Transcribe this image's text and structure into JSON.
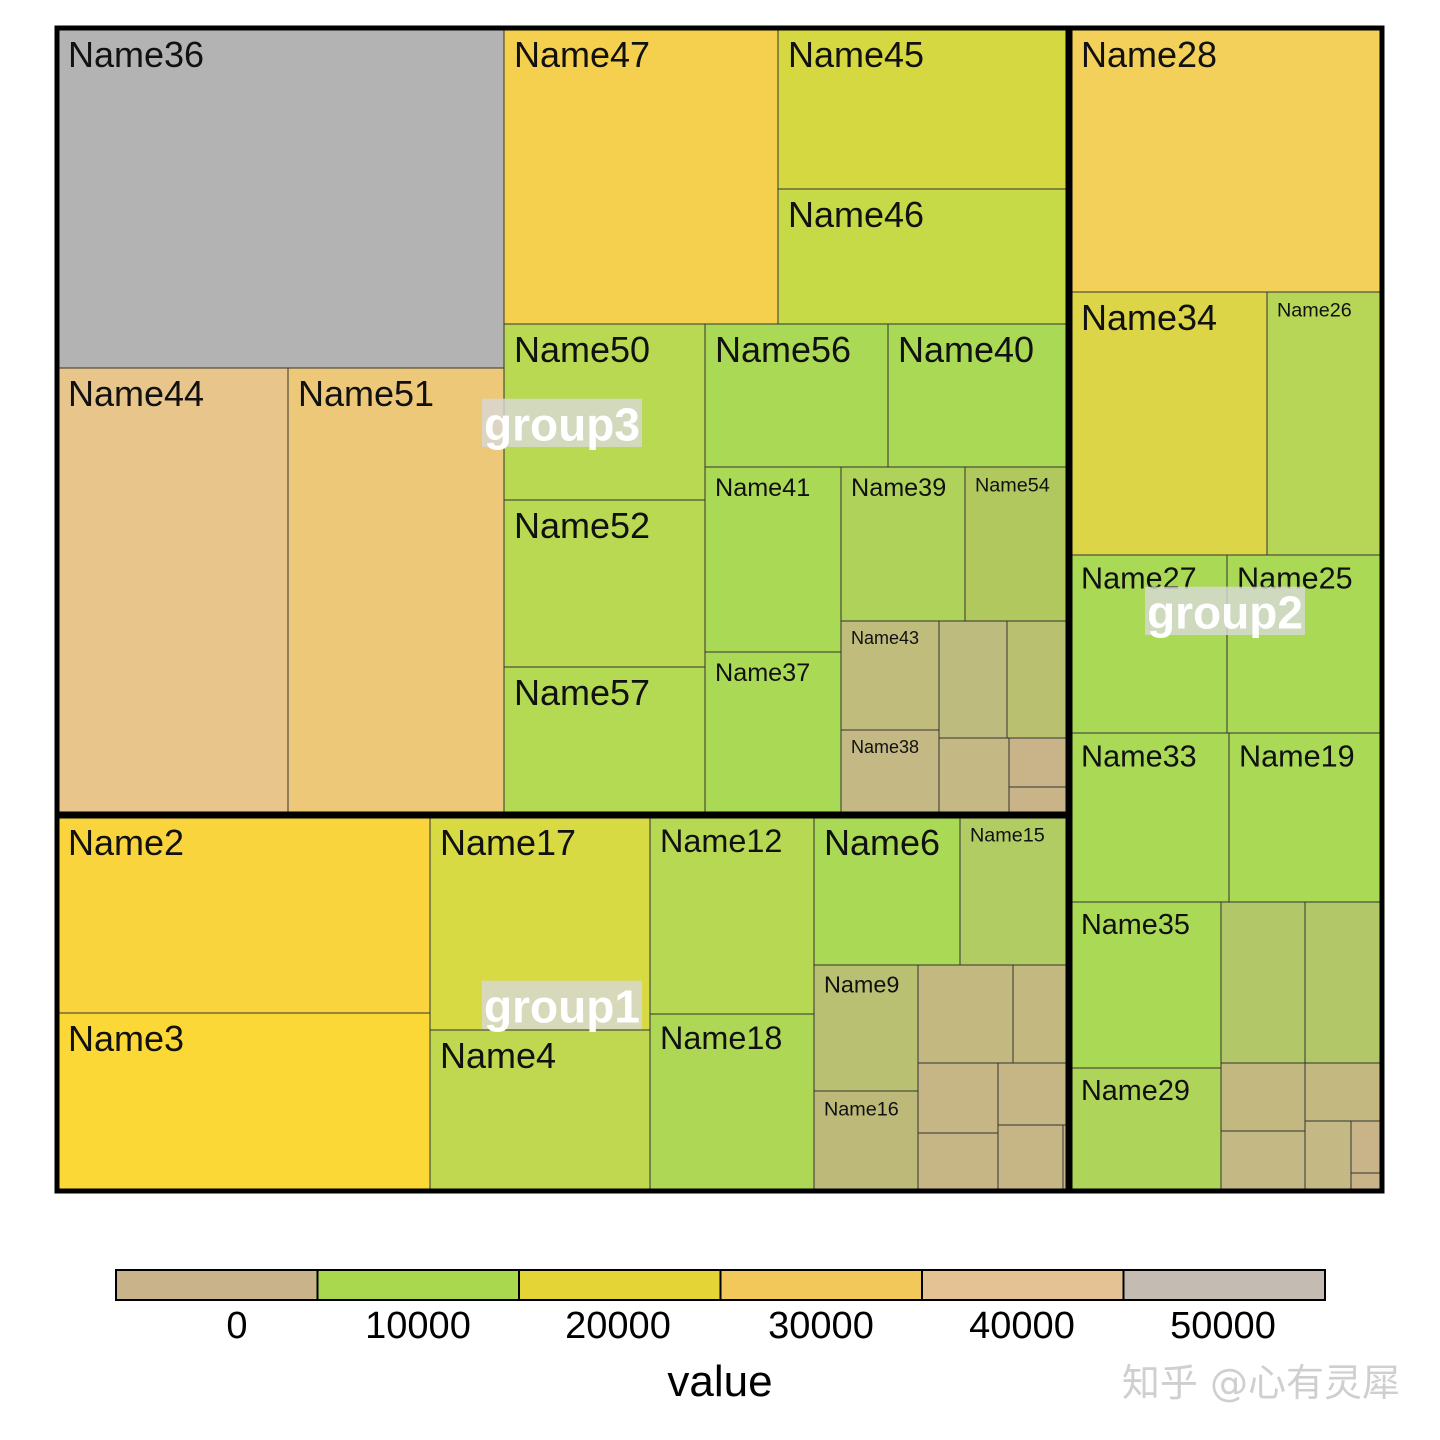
{
  "chart_data": {
    "type": "treemap",
    "legend": {
      "title": "value",
      "ticks": [
        "0",
        "10000",
        "20000",
        "30000",
        "40000",
        "50000"
      ],
      "bins": [
        {
          "color": "#c8b38a"
        },
        {
          "color": "#a9d84f"
        },
        {
          "color": "#e4d435"
        },
        {
          "color": "#f2c85a"
        },
        {
          "color": "#e4c293"
        },
        {
          "color": "#c4bcb2"
        }
      ],
      "placement": "bottom"
    },
    "groups": [
      {
        "name": "group3",
        "tiles": [
          {
            "label": "Name36",
            "color": "#b3b3b3"
          },
          {
            "label": "Name44",
            "color": "#e8c58a"
          },
          {
            "label": "Name51",
            "color": "#ecc878"
          },
          {
            "label": "Name47",
            "color": "#f5d04e"
          },
          {
            "label": "Name45",
            "color": "#d6d842"
          },
          {
            "label": "Name46",
            "color": "#c6da48"
          },
          {
            "label": "Name50",
            "color": "#b9d952"
          },
          {
            "label": "Name56",
            "color": "#a9d955"
          },
          {
            "label": "Name40",
            "color": "#a9d955"
          },
          {
            "label": "Name52",
            "color": "#b9d952"
          },
          {
            "label": "Name41",
            "color": "#a9d955"
          },
          {
            "label": "Name39",
            "color": "#afd25a"
          },
          {
            "label": "Name54",
            "color": "#b0c85e"
          },
          {
            "label": "Name57",
            "color": "#b4d953"
          },
          {
            "label": "Name37",
            "color": "#a9d955"
          },
          {
            "label": "Name43",
            "color": "#c0bc7c"
          },
          {
            "label": "",
            "color": "#bdbc7e"
          },
          {
            "label": "",
            "color": "#b9c070"
          },
          {
            "label": "Name38",
            "color": "#c4b884"
          },
          {
            "label": "",
            "color": "#c4b884"
          },
          {
            "label": "",
            "color": "#c9b48a"
          },
          {
            "label": "",
            "color": "#c9b48a"
          }
        ]
      },
      {
        "name": "group1",
        "tiles": [
          {
            "label": "Name2",
            "color": "#f9d43c"
          },
          {
            "label": "Name3",
            "color": "#fbd836"
          },
          {
            "label": "Name17",
            "color": "#d8da44"
          },
          {
            "label": "Name4",
            "color": "#bfd84f"
          },
          {
            "label": "Name12",
            "color": "#b6d853"
          },
          {
            "label": "Name18",
            "color": "#add755"
          },
          {
            "label": "Name6",
            "color": "#a9d955"
          },
          {
            "label": "Name15",
            "color": "#b2cc64"
          },
          {
            "label": "Name9",
            "color": "#b9c072"
          },
          {
            "label": "",
            "color": "#c2b880"
          },
          {
            "label": "",
            "color": "#c2b880"
          },
          {
            "label": "Name16",
            "color": "#bcb979"
          },
          {
            "label": "",
            "color": "#c6b686"
          },
          {
            "label": "",
            "color": "#c6b686"
          },
          {
            "label": "",
            "color": "#c6b686"
          },
          {
            "label": "",
            "color": "#c6b686"
          },
          {
            "label": "",
            "color": "#c9b48a"
          }
        ]
      },
      {
        "name": "group2",
        "tiles": [
          {
            "label": "Name28",
            "color": "#f2d05a"
          },
          {
            "label": "Name34",
            "color": "#dcd547"
          },
          {
            "label": "Name26",
            "color": "#b7d556"
          },
          {
            "label": "Name27",
            "color": "#a9d955"
          },
          {
            "label": "Name25",
            "color": "#a9d955"
          },
          {
            "label": "Name33",
            "color": "#a9d955"
          },
          {
            "label": "Name19",
            "color": "#a9d955"
          },
          {
            "label": "Name35",
            "color": "#a9d955"
          },
          {
            "label": "",
            "color": "#b2c868"
          },
          {
            "label": "",
            "color": "#b2c868"
          },
          {
            "label": "Name29",
            "color": "#aed45a"
          },
          {
            "label": "",
            "color": "#c2b880"
          },
          {
            "label": "",
            "color": "#c2b880"
          },
          {
            "label": "",
            "color": "#c4b884"
          },
          {
            "label": "",
            "color": "#c4b884"
          },
          {
            "label": "",
            "color": "#c9b48a"
          },
          {
            "label": "",
            "color": "#c9b48a"
          }
        ]
      }
    ]
  },
  "watermark": "知乎 @心有灵犀"
}
